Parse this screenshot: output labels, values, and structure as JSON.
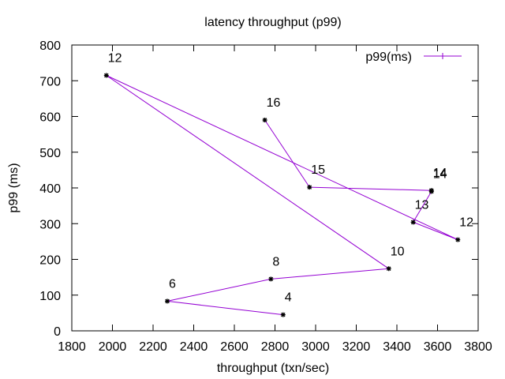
{
  "chart_data": {
    "type": "line",
    "title": "latency throughput (p99)",
    "xlabel": "throughput (txn/sec)",
    "ylabel": "p99 (ms)",
    "xlim": [
      1800,
      3800
    ],
    "ylim": [
      0,
      800
    ],
    "xticks": [
      1800,
      2000,
      2200,
      2400,
      2600,
      2800,
      3000,
      3200,
      3400,
      3600,
      3800
    ],
    "yticks": [
      0,
      100,
      200,
      300,
      400,
      500,
      600,
      700,
      800
    ],
    "grid": false,
    "legend_position": "top-right",
    "series": [
      {
        "name": "p99(ms)",
        "color": "#9400d3",
        "x": [
          2840,
          2270,
          2780,
          3360,
          1970,
          3700,
          3480,
          3570,
          3570,
          2970,
          2750
        ],
        "y": [
          45,
          83,
          145,
          174,
          715,
          255,
          304,
          390,
          393,
          402,
          590
        ],
        "point_labels": [
          "4",
          "6",
          "8",
          "10",
          "12",
          "12",
          "13",
          "14",
          "14",
          "15",
          "16"
        ]
      }
    ]
  }
}
